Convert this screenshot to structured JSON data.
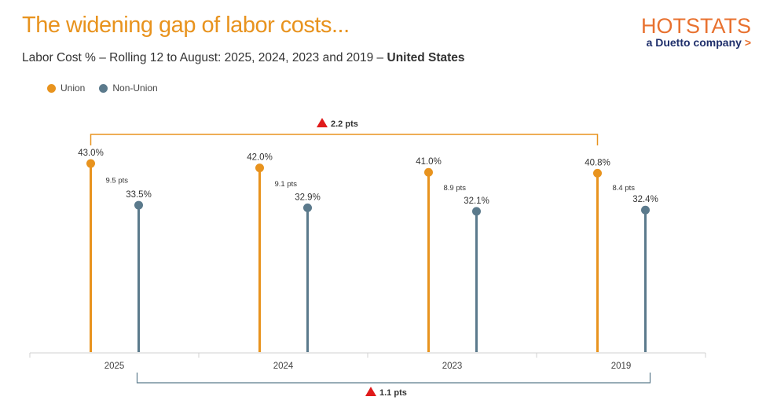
{
  "title": "The widening gap of labor costs...",
  "subtitle": {
    "text": "Labor Cost % – Rolling 12 to August: 2025, 2024, 2023 and 2019 – ",
    "bold": "United States"
  },
  "logo": {
    "brand": "HOTSTATS",
    "tagline": "a Duetto company",
    "arrow": ">"
  },
  "colors": {
    "union": "#E8931E",
    "non_union": "#5B7A8C",
    "title": "#E8931E",
    "up_arrow": "#E01B1B"
  },
  "chart_data": {
    "type": "lollipop",
    "categories": [
      "2025",
      "2024",
      "2023",
      "2019"
    ],
    "series": [
      {
        "name": "Union",
        "values": [
          43.0,
          42.0,
          41.0,
          40.8
        ],
        "labels": [
          "43.0%",
          "42.0%",
          "41.0%",
          "40.8%"
        ]
      },
      {
        "name": "Non-Union",
        "values": [
          33.5,
          32.9,
          32.1,
          32.4
        ],
        "labels": [
          "33.5%",
          "32.9%",
          "32.1%",
          "32.4%"
        ]
      }
    ],
    "gap_labels": [
      "9.5 pts",
      "9.1 pts",
      "8.9 pts",
      "8.4 pts"
    ],
    "annotations": {
      "union_change": {
        "text": "2.2 pts",
        "direction": "up",
        "from": "2019",
        "to": "2025"
      },
      "non_union_change": {
        "text": "1.1 pts",
        "direction": "up",
        "from": "2019",
        "to": "2025"
      }
    },
    "legend_position": "top-left",
    "grid": false,
    "ylim": [
      0,
      45
    ]
  }
}
